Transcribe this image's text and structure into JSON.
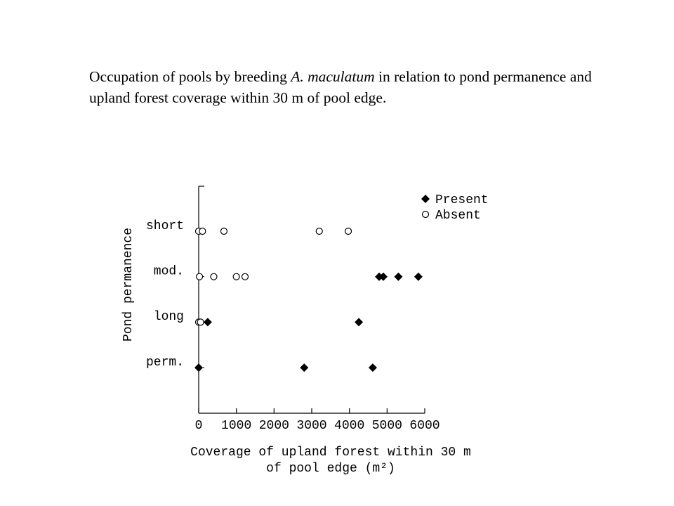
{
  "chart_data": {
    "type": "scatter",
    "title_parts": [
      "Occupation of pools by breeding ",
      "A. maculatum",
      " in relation to pond permanence and upland forest coverage within 30 m of pool edge."
    ],
    "xlabel": [
      "Coverage of upland forest within 30 m",
      "of pool edge (m²)"
    ],
    "ylabel": "Pond permanence",
    "categories": [
      "short",
      "mod.",
      "long",
      "perm."
    ],
    "xlim": [
      0,
      6000
    ],
    "xticks": [
      0,
      1000,
      2000,
      3000,
      4000,
      5000,
      6000
    ],
    "legend": "upper right",
    "series": [
      {
        "name": "Present",
        "marker": "diamond",
        "color": "#000000",
        "x": [
          240,
          4250,
          0,
          2800,
          4620,
          4790,
          4900,
          5300,
          5830
        ],
        "y": [
          "long",
          "long",
          "perm.",
          "perm.",
          "perm.",
          "mod.",
          "mod.",
          "mod.",
          "mod."
        ]
      },
      {
        "name": "Absent",
        "marker": "circle",
        "color": "#000000",
        "x": [
          0,
          100,
          670,
          3200,
          3970,
          20,
          400,
          1000,
          1230,
          0,
          50
        ],
        "y": [
          "short",
          "short",
          "short",
          "short",
          "short",
          "mod.",
          "mod.",
          "mod.",
          "mod.",
          "long",
          "long"
        ]
      }
    ]
  }
}
